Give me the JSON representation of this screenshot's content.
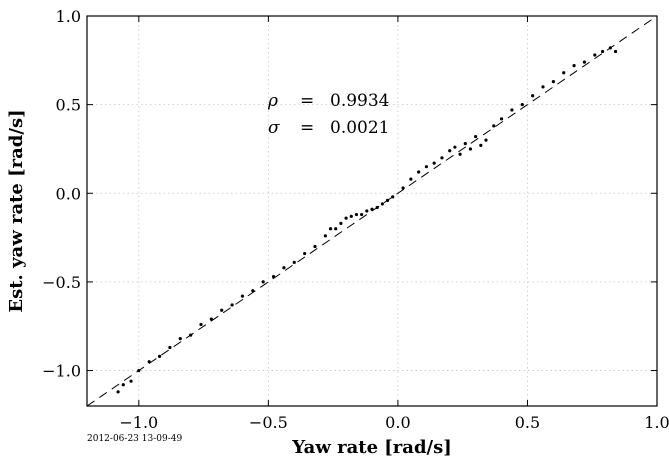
{
  "chart_data": {
    "type": "scatter",
    "xlabel": "Yaw rate [rad/s]",
    "ylabel": "Est. yaw rate [rad/s]",
    "xlim": [
      -1.2,
      1.0
    ],
    "ylim": [
      -1.2,
      1.0
    ],
    "xticks": [
      -1.0,
      -0.5,
      0.0,
      0.5,
      1.0
    ],
    "yticks": [
      -1.0,
      -0.5,
      0.0,
      0.5,
      1.0
    ],
    "xtick_labels": [
      "−1.0",
      "−0.5",
      "0.0",
      "0.5",
      "1.0"
    ],
    "ytick_labels": [
      "−1.0",
      "−0.5",
      "0.0",
      "0.5",
      "1.0"
    ],
    "grid": true,
    "reference_line": {
      "style": "dashed",
      "slope": 1,
      "intercept": 0
    },
    "stats": [
      {
        "symbol": "ρ",
        "equals": "=",
        "value": "0.9934"
      },
      {
        "symbol": "σ",
        "equals": "=",
        "value": "0.0021"
      }
    ],
    "timestamp": "2012-06-23 13-09-49",
    "series": [
      {
        "marker": "dot",
        "color": "#000000",
        "x": [
          -1.08,
          -1.06,
          -1.03,
          -1.0,
          -0.96,
          -0.92,
          -0.88,
          -0.84,
          -0.8,
          -0.76,
          -0.72,
          -0.68,
          -0.64,
          -0.6,
          -0.56,
          -0.52,
          -0.48,
          -0.44,
          -0.4,
          -0.36,
          -0.32,
          -0.28,
          -0.26,
          -0.24,
          -0.22,
          -0.2,
          -0.18,
          -0.16,
          -0.14,
          -0.12,
          -0.1,
          -0.08,
          -0.06,
          -0.04,
          -0.02,
          0.02,
          0.05,
          0.08,
          0.11,
          0.14,
          0.17,
          0.2,
          0.22,
          0.24,
          0.26,
          0.28,
          0.3,
          0.32,
          0.34,
          0.37,
          0.4,
          0.44,
          0.48,
          0.52,
          0.56,
          0.6,
          0.64,
          0.68,
          0.72,
          0.76,
          0.79,
          0.82,
          0.84
        ],
        "y": [
          -1.12,
          -1.08,
          -1.06,
          -1.0,
          -0.95,
          -0.92,
          -0.87,
          -0.82,
          -0.8,
          -0.74,
          -0.71,
          -0.66,
          -0.63,
          -0.58,
          -0.55,
          -0.5,
          -0.47,
          -0.42,
          -0.39,
          -0.34,
          -0.3,
          -0.24,
          -0.2,
          -0.2,
          -0.17,
          -0.14,
          -0.13,
          -0.12,
          -0.12,
          -0.1,
          -0.09,
          -0.08,
          -0.06,
          -0.04,
          -0.02,
          0.03,
          0.08,
          0.12,
          0.15,
          0.17,
          0.2,
          0.24,
          0.26,
          0.22,
          0.28,
          0.25,
          0.32,
          0.27,
          0.3,
          0.38,
          0.42,
          0.47,
          0.5,
          0.55,
          0.6,
          0.63,
          0.68,
          0.72,
          0.74,
          0.78,
          0.8,
          0.82,
          0.8
        ]
      }
    ]
  }
}
